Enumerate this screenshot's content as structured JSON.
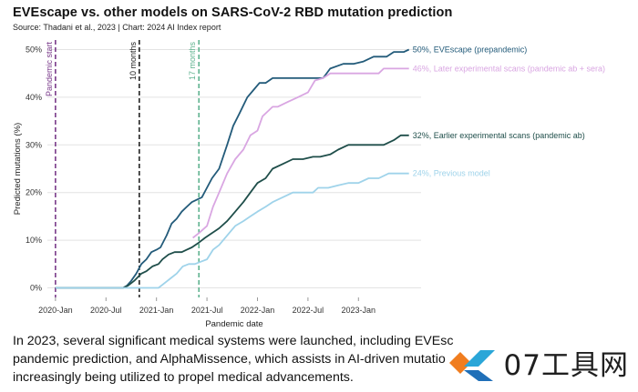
{
  "header": {
    "title": "EVEscape vs. other models on SARS-CoV-2 RBD mutation prediction",
    "source": "Source: Thadani et al., 2023 | Chart: 2024 AI Index report"
  },
  "caption": {
    "line1": "In 2023, several significant medical systems were launched, including EVEsc",
    "line2": "pandemic prediction, and AlphaMissence, which assists in AI-driven mutatio",
    "line3": "increasingly being utilized to propel medical advancements."
  },
  "watermark": {
    "text": "07工具网"
  },
  "chart_data": {
    "type": "line",
    "xlabel": "Pandemic date",
    "ylabel": "Predicted mutations (%)",
    "xlim": [
      2019.92,
      2023.62
    ],
    "ylim": [
      -2,
      52
    ],
    "x_ticks": [
      {
        "value": 2020.0,
        "label": "2020-Jan"
      },
      {
        "value": 2020.5,
        "label": "2020-Jul"
      },
      {
        "value": 2021.0,
        "label": "2021-Jan"
      },
      {
        "value": 2021.5,
        "label": "2021-Jul"
      },
      {
        "value": 2022.0,
        "label": "2022-Jan"
      },
      {
        "value": 2022.5,
        "label": "2022-Jul"
      },
      {
        "value": 2023.0,
        "label": "2023-Jan"
      }
    ],
    "y_ticks": [
      {
        "value": 0,
        "label": "0%"
      },
      {
        "value": 10,
        "label": "10%"
      },
      {
        "value": 20,
        "label": "20%"
      },
      {
        "value": 30,
        "label": "30%"
      },
      {
        "value": 40,
        "label": "40%"
      },
      {
        "value": 50,
        "label": "50%"
      }
    ],
    "events": [
      {
        "label": "Pandemic start",
        "x": 2020.0,
        "color": "#7a3a8a"
      },
      {
        "label": "10 months",
        "x": 2020.83,
        "color": "#222222"
      },
      {
        "label": "17 months",
        "x": 2021.42,
        "color": "#5fb38f"
      }
    ],
    "series": [
      {
        "name": "EVEscape (prepandemic)",
        "end_label": "50%, EVEscape (prepandemic)",
        "color": "#235b7a",
        "points": [
          [
            2020.0,
            0
          ],
          [
            2020.67,
            0
          ],
          [
            2020.71,
            0.5
          ],
          [
            2020.75,
            1.5
          ],
          [
            2020.8,
            3
          ],
          [
            2020.85,
            5
          ],
          [
            2020.9,
            6
          ],
          [
            2020.95,
            7.5
          ],
          [
            2021.0,
            8
          ],
          [
            2021.04,
            8.5
          ],
          [
            2021.1,
            11
          ],
          [
            2021.15,
            13.5
          ],
          [
            2021.2,
            14.5
          ],
          [
            2021.25,
            16
          ],
          [
            2021.3,
            17
          ],
          [
            2021.35,
            18
          ],
          [
            2021.45,
            19
          ],
          [
            2021.55,
            23
          ],
          [
            2021.62,
            25
          ],
          [
            2021.7,
            30
          ],
          [
            2021.76,
            34
          ],
          [
            2021.82,
            36.5
          ],
          [
            2021.9,
            40
          ],
          [
            2021.96,
            41.5
          ],
          [
            2022.02,
            43
          ],
          [
            2022.08,
            43
          ],
          [
            2022.15,
            44
          ],
          [
            2022.3,
            44
          ],
          [
            2022.5,
            44
          ],
          [
            2022.65,
            44
          ],
          [
            2022.72,
            46
          ],
          [
            2022.85,
            47
          ],
          [
            2022.95,
            47
          ],
          [
            2023.05,
            47.5
          ],
          [
            2023.15,
            48.5
          ],
          [
            2023.28,
            48.5
          ],
          [
            2023.35,
            49.5
          ],
          [
            2023.45,
            49.5
          ],
          [
            2023.5,
            50
          ]
        ]
      },
      {
        "name": "Later experimental scans (pandemic ab + sera)",
        "end_label": "46%, Later experimental scans (pandemic ab + sera)",
        "color": "#d9a6e2",
        "points": [
          [
            2021.36,
            10.5
          ],
          [
            2021.42,
            11.5
          ],
          [
            2021.5,
            13
          ],
          [
            2021.56,
            17
          ],
          [
            2021.62,
            20
          ],
          [
            2021.7,
            24
          ],
          [
            2021.78,
            27
          ],
          [
            2021.86,
            29
          ],
          [
            2021.93,
            32
          ],
          [
            2022.0,
            33
          ],
          [
            2022.05,
            36
          ],
          [
            2022.1,
            37
          ],
          [
            2022.15,
            38
          ],
          [
            2022.2,
            38
          ],
          [
            2022.3,
            39
          ],
          [
            2022.4,
            40
          ],
          [
            2022.5,
            41
          ],
          [
            2022.57,
            43.5
          ],
          [
            2022.65,
            44
          ],
          [
            2022.72,
            45
          ],
          [
            2022.8,
            45
          ],
          [
            2022.9,
            45
          ],
          [
            2023.0,
            45
          ],
          [
            2023.1,
            45
          ],
          [
            2023.2,
            45
          ],
          [
            2023.25,
            46
          ],
          [
            2023.4,
            46
          ],
          [
            2023.5,
            46
          ]
        ]
      },
      {
        "name": "Earlier experimental scans (pandemic ab)",
        "end_label": "32%, Earlier experimental scans (pandemic ab)",
        "color": "#1f4e4a",
        "points": [
          [
            2020.0,
            0
          ],
          [
            2020.67,
            0
          ],
          [
            2020.72,
            0.5
          ],
          [
            2020.78,
            1.5
          ],
          [
            2020.85,
            3
          ],
          [
            2020.9,
            3.5
          ],
          [
            2020.96,
            4.5
          ],
          [
            2021.02,
            5
          ],
          [
            2021.06,
            6
          ],
          [
            2021.12,
            7
          ],
          [
            2021.18,
            7.5
          ],
          [
            2021.25,
            7.5
          ],
          [
            2021.3,
            8
          ],
          [
            2021.35,
            8.5
          ],
          [
            2021.42,
            9.5
          ],
          [
            2021.48,
            10.5
          ],
          [
            2021.55,
            11.5
          ],
          [
            2021.62,
            12.5
          ],
          [
            2021.7,
            14
          ],
          [
            2021.78,
            16
          ],
          [
            2021.86,
            18
          ],
          [
            2021.93,
            20
          ],
          [
            2022.0,
            22
          ],
          [
            2022.08,
            23
          ],
          [
            2022.15,
            25
          ],
          [
            2022.25,
            26
          ],
          [
            2022.35,
            27
          ],
          [
            2022.45,
            27
          ],
          [
            2022.55,
            27.5
          ],
          [
            2022.62,
            27.5
          ],
          [
            2022.72,
            28
          ],
          [
            2022.8,
            29
          ],
          [
            2022.9,
            30
          ],
          [
            2023.0,
            30
          ],
          [
            2023.1,
            30
          ],
          [
            2023.25,
            30
          ],
          [
            2023.35,
            31
          ],
          [
            2023.42,
            32
          ],
          [
            2023.5,
            32
          ]
        ]
      },
      {
        "name": "Previous model",
        "end_label": "24%, Previous model",
        "color": "#9fd3ea",
        "points": [
          [
            2020.0,
            0
          ],
          [
            2020.67,
            0
          ],
          [
            2020.85,
            0
          ],
          [
            2021.02,
            0
          ],
          [
            2021.08,
            1
          ],
          [
            2021.14,
            2
          ],
          [
            2021.2,
            3
          ],
          [
            2021.26,
            4.5
          ],
          [
            2021.32,
            5
          ],
          [
            2021.38,
            5
          ],
          [
            2021.44,
            5.5
          ],
          [
            2021.5,
            6
          ],
          [
            2021.56,
            8
          ],
          [
            2021.62,
            9
          ],
          [
            2021.7,
            11
          ],
          [
            2021.78,
            13
          ],
          [
            2021.86,
            14
          ],
          [
            2021.93,
            15
          ],
          [
            2022.0,
            16
          ],
          [
            2022.08,
            17
          ],
          [
            2022.15,
            18
          ],
          [
            2022.25,
            19
          ],
          [
            2022.35,
            20
          ],
          [
            2022.45,
            20
          ],
          [
            2022.55,
            20
          ],
          [
            2022.6,
            21
          ],
          [
            2022.7,
            21
          ],
          [
            2022.8,
            21.5
          ],
          [
            2022.9,
            22
          ],
          [
            2023.0,
            22
          ],
          [
            2023.1,
            23
          ],
          [
            2023.2,
            23
          ],
          [
            2023.3,
            24
          ],
          [
            2023.45,
            24
          ],
          [
            2023.5,
            24
          ]
        ]
      }
    ]
  }
}
